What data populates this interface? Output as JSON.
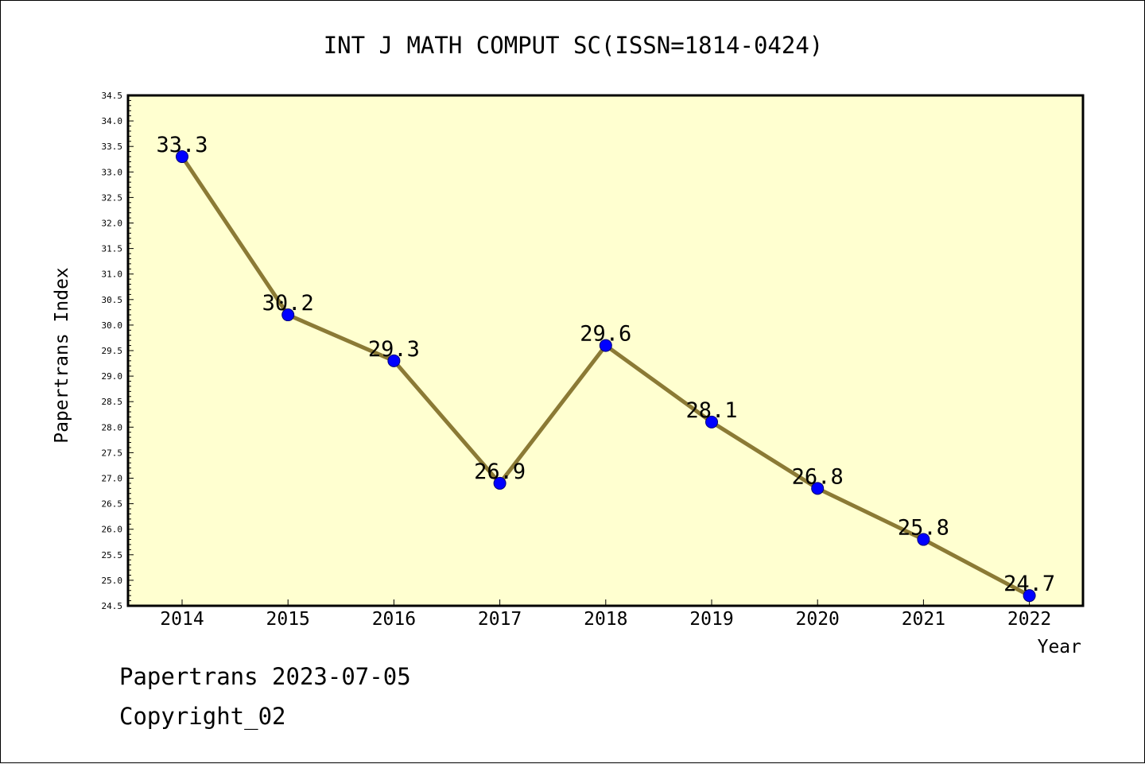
{
  "chart_data": {
    "type": "line",
    "title": "INT J MATH COMPUT SC(ISSN=1814-0424)",
    "xlabel": "Year",
    "ylabel": "Papertrans Index",
    "categories": [
      "2014",
      "2015",
      "2016",
      "2017",
      "2018",
      "2019",
      "2020",
      "2021",
      "2022"
    ],
    "series": [
      {
        "values": [
          33.3,
          30.2,
          29.3,
          26.9,
          29.6,
          28.1,
          26.8,
          25.8,
          24.7
        ],
        "labels": [
          "33.3",
          "30.2",
          "29.3",
          "26.9",
          "29.6",
          "28.1",
          "26.8",
          "25.8",
          "24.7"
        ]
      }
    ],
    "ylim": [
      24.5,
      34.5
    ],
    "yticks": [
      "24.5",
      "25.0",
      "25.5",
      "26.0",
      "26.5",
      "27.0",
      "27.5",
      "28.0",
      "28.5",
      "29.0",
      "29.5",
      "30.0",
      "30.5",
      "31.0",
      "31.5",
      "32.0",
      "32.5",
      "33.0",
      "33.5",
      "34.0",
      "34.5"
    ],
    "grid": false,
    "colors": {
      "plot_background": "#ffffd0",
      "line": "#8b7a35",
      "marker": "#0000ff",
      "frame": "#000000"
    }
  },
  "footer": {
    "date_line": "Papertrans 2023-07-05",
    "copyright": "Copyright_02"
  }
}
